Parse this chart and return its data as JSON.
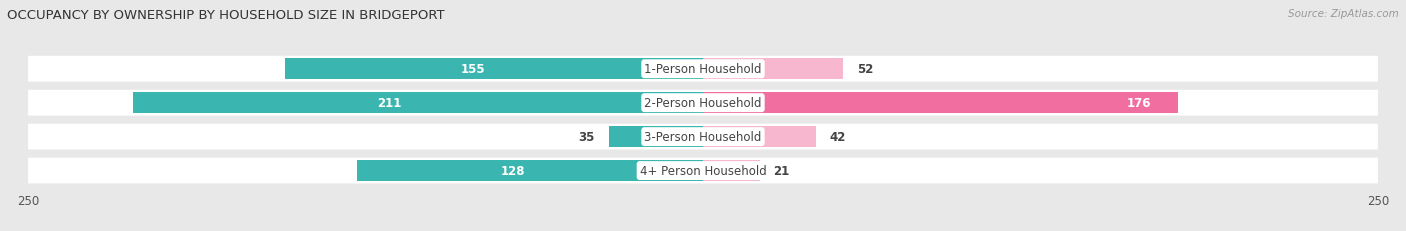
{
  "title": "OCCUPANCY BY OWNERSHIP BY HOUSEHOLD SIZE IN BRIDGEPORT",
  "source": "Source: ZipAtlas.com",
  "categories": [
    "1-Person Household",
    "2-Person Household",
    "3-Person Household",
    "4+ Person Household"
  ],
  "owner_values": [
    155,
    211,
    35,
    128
  ],
  "renter_values": [
    52,
    176,
    42,
    21
  ],
  "owner_color": "#3ab5b0",
  "renter_color": "#f06fa0",
  "renter_color_light": "#f7b8cf",
  "axis_max": 250,
  "background_color": "#e8e8e8",
  "row_bg_color": "#f5f5f5",
  "title_fontsize": 9.5,
  "bar_height": 0.62
}
